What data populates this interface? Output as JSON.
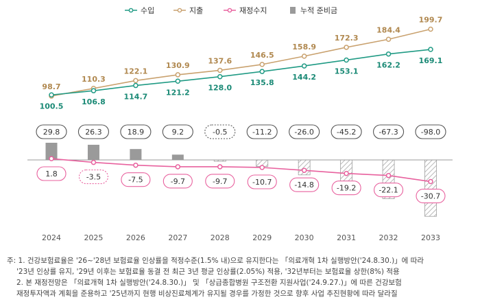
{
  "chart_data": {
    "type": "line",
    "legend": [
      "수입",
      "지출",
      "재정수지",
      "누적 준비금"
    ],
    "legend_position": "top-center",
    "categories": [
      "2024",
      "2025",
      "2026",
      "2027",
      "2028",
      "2029",
      "2030",
      "2031",
      "2032",
      "2033"
    ],
    "series": [
      {
        "name": "수입",
        "kind": "line",
        "values": [
          100.5,
          106.8,
          114.7,
          121.2,
          128.0,
          135.8,
          144.2,
          153.1,
          162.2,
          169.1
        ],
        "labels": [
          "100.5",
          "106.8",
          "114.7",
          "121.2",
          "128.0",
          "135.8",
          "144.2",
          "153.1",
          "162.2",
          "169.1"
        ]
      },
      {
        "name": "지출",
        "kind": "line",
        "values": [
          98.7,
          110.3,
          122.1,
          130.9,
          137.6,
          146.5,
          158.9,
          172.3,
          184.4,
          199.7
        ],
        "labels": [
          "98.7",
          "110.3",
          "122.1",
          "130.9",
          "137.6",
          "146.5",
          "158.9",
          "172.3",
          "184.4",
          "199.7"
        ]
      },
      {
        "name": "재정수지",
        "kind": "line",
        "values": [
          1.8,
          -3.5,
          -7.5,
          -9.7,
          -9.7,
          -10.7,
          -14.8,
          -19.2,
          -22.1,
          -30.7
        ],
        "labels": [
          "1.8",
          "-3.5",
          "-7.5",
          "-9.7",
          "-9.7",
          "-10.7",
          "-14.8",
          "-19.2",
          "-22.1",
          "-30.7"
        ]
      },
      {
        "name": "누적 준비금",
        "kind": "bar",
        "values": [
          29.8,
          26.3,
          18.9,
          9.2,
          -0.5,
          -11.2,
          -26.0,
          -45.2,
          -67.3,
          -98.0
        ],
        "labels": [
          "29.8",
          "26.3",
          "18.9",
          "9.2",
          "-0.5",
          "-11.2",
          "-26.0",
          "-45.2",
          "-67.3",
          "-98.0"
        ]
      }
    ],
    "grid": false
  },
  "notes": [
    "주: 1. 건강보험료율은 '26~'28년 보험료율 인상률을 적정수준(1.5% 내)으로 유지한다는 「의료개혁 1차 실행방안('24.8.30.)」에 따라",
    "'23년 인상률 유지, '29년 이후는 보험료율 동결 전 최근 3년 평균 인상률(2.05%) 적용, '32년부터는 보험료율 상한(8%) 적용",
    "2. 본 재정전망은 「의료개혁 1차 실행방안('24.8.30.)」 및 「상급종합병원 구조전환 지원사업('24.9.27.)」에 따른 건강보험",
    "재정투자액과 계획을 준용하고 '25년까지 현행 비상진료체계가 유지될 경우를 가정한 것으로 향후 사업 추진현황에 따라 달라질"
  ],
  "colors": {
    "income": "#1f9a84",
    "expense": "#c9a16e",
    "balance": "#e8619e",
    "reserve": "#9a9a9a",
    "reserve_hatch": "#b8b8b8",
    "text": "#444444"
  }
}
